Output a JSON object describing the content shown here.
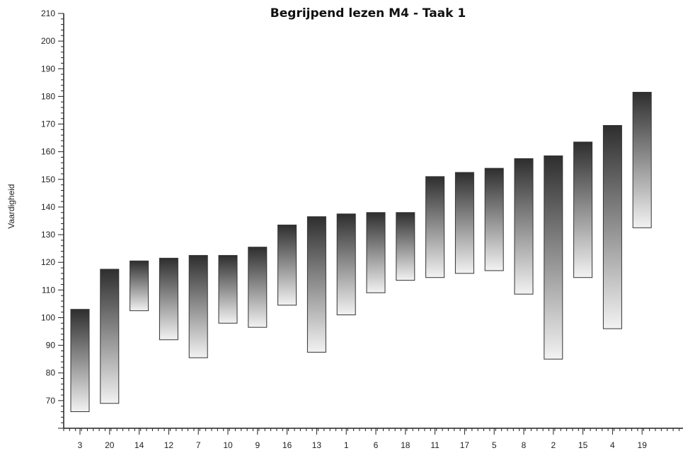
{
  "chart_data": {
    "type": "bar",
    "subtype": "floating-range",
    "title": "Begrijpend lezen M4 - Taak 1",
    "xlabel": "",
    "ylabel": "Vaardigheid",
    "ylim": [
      60,
      210
    ],
    "ytick_step": 10,
    "grid": false,
    "legend": "none",
    "colors": {
      "bar_top": "#2e2e2e",
      "bar_bottom": "#f2f2f2",
      "bar_stroke": "#333333",
      "axis": "#222222"
    },
    "categories": [
      "3",
      "20",
      "14",
      "12",
      "7",
      "10",
      "9",
      "16",
      "13",
      "1",
      "6",
      "18",
      "11",
      "17",
      "5",
      "8",
      "2",
      "15",
      "4",
      "19"
    ],
    "low": [
      66,
      69,
      102.5,
      92,
      85.5,
      98,
      96.5,
      104.5,
      87.5,
      101,
      109,
      113.5,
      114.5,
      116,
      117,
      108.5,
      85,
      114.5,
      96,
      132.5
    ],
    "high": [
      103,
      117.5,
      120.5,
      121.5,
      122.5,
      122.5,
      125.5,
      133.5,
      136.5,
      137.5,
      138,
      138,
      151,
      152.5,
      154,
      157.5,
      158.5,
      163.5,
      169.5,
      181.5
    ]
  }
}
